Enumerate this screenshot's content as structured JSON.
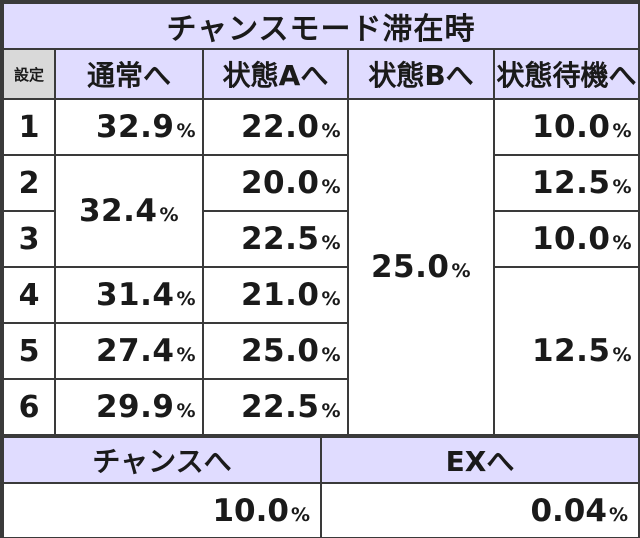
{
  "title": "チャンスモード滞在時",
  "headers": {
    "setting": "設定",
    "normal": "通常へ",
    "stateA": "状態Aへ",
    "stateB": "状態Bへ",
    "standby": "状態待機へ"
  },
  "rows": [
    {
      "setting": "1",
      "normal": "32.9",
      "stateA": "22.0",
      "standby": "10.0"
    },
    {
      "setting": "2",
      "normal": "32.4",
      "stateA": "20.0",
      "standby": "12.5"
    },
    {
      "setting": "3",
      "stateA": "22.5",
      "standby": "10.0"
    },
    {
      "setting": "4",
      "normal": "31.4",
      "stateA": "21.0",
      "standby": "12.5"
    },
    {
      "setting": "5",
      "normal": "27.4",
      "stateA": "25.0"
    },
    {
      "setting": "6",
      "normal": "29.9",
      "stateA": "22.5"
    }
  ],
  "stateB_all": "25.0",
  "percent_sign": "%",
  "bottom": {
    "chance_label": "チャンスへ",
    "chance_value": "10.0",
    "ex_label": "EXへ",
    "ex_value": "0.04"
  }
}
